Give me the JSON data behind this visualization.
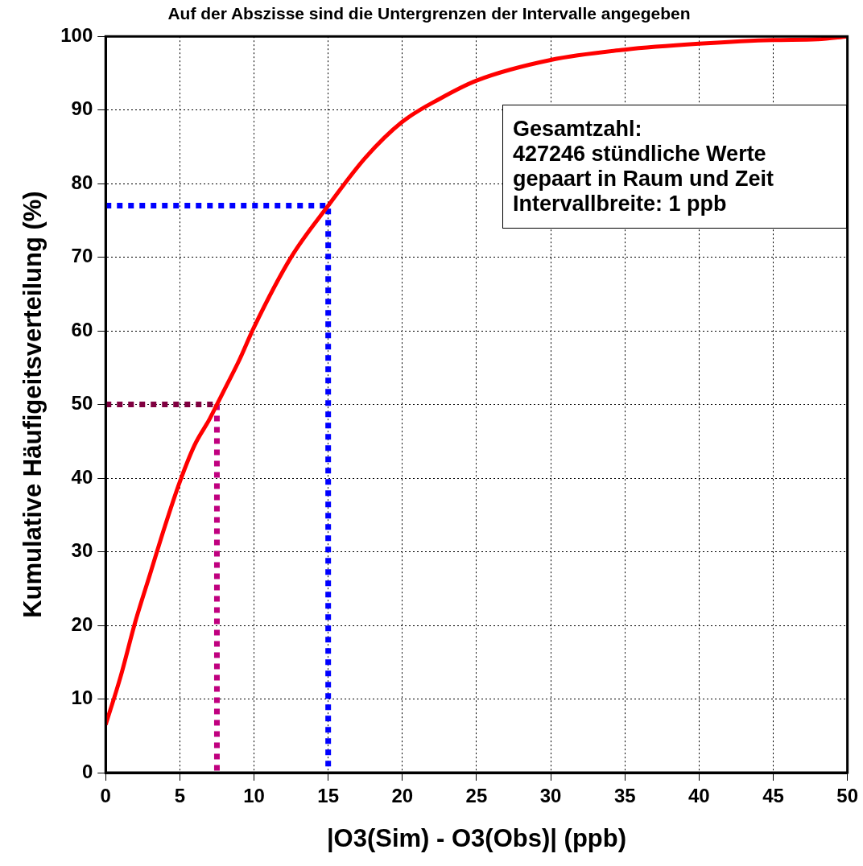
{
  "chart_data": {
    "type": "line",
    "title": "Auf der Abszisse sind die Untergrenzen der Intervalle angegeben",
    "xlabel": "|O3(Sim) - O3(Obs)| (ppb)",
    "ylabel": "Kumulative Häufigeitsverteilung (%)",
    "xlim": [
      0,
      50
    ],
    "ylim": [
      0,
      100
    ],
    "xticks": [
      0,
      5,
      10,
      15,
      20,
      25,
      30,
      35,
      40,
      45,
      50
    ],
    "yticks": [
      0,
      10,
      20,
      30,
      40,
      50,
      60,
      70,
      80,
      90,
      100
    ],
    "grid": true,
    "legend": false,
    "marker": "none",
    "annotations": [
      "Gesamtzahl:\n427246 stündliche Werte\ngepaart in Raum und Zeit\nIntervallbreite: 1 ppb"
    ],
    "series": [
      {
        "color": "#ff0000",
        "line_style": "solid",
        "x": [
          0,
          1,
          2,
          3,
          4,
          5,
          6,
          7,
          7.5,
          8,
          9,
          10,
          12.5,
          15,
          17.5,
          20,
          22.5,
          25,
          30,
          35,
          40,
          45,
          48,
          50
        ],
        "values": [
          6.5,
          13,
          20.5,
          27,
          33.5,
          39.5,
          44.5,
          48,
          50,
          52,
          56,
          60.5,
          70,
          77,
          83.5,
          88.4,
          91.5,
          94,
          96.8,
          98.2,
          99,
          99.5,
          99.6,
          100
        ]
      },
      {
        "color": "#0000ff",
        "line_style": "dotted",
        "x": [
          0,
          15,
          15
        ],
        "values": [
          77,
          77,
          0
        ]
      },
      {
        "color": "#800040",
        "line_style": "dotted",
        "x": [
          0,
          7.5
        ],
        "values": [
          50,
          50
        ]
      },
      {
        "color": "#c0007f",
        "line_style": "dotted",
        "x": [
          7.5,
          7.5
        ],
        "values": [
          50,
          0
        ]
      }
    ]
  }
}
